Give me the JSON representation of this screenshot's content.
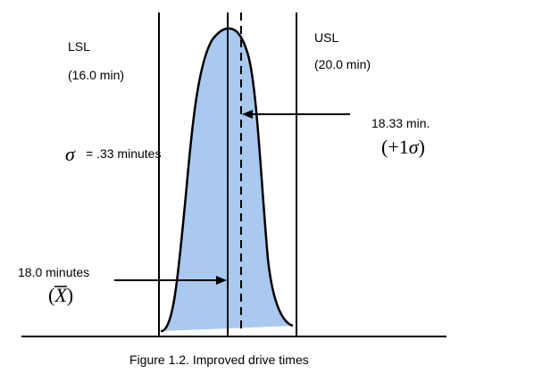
{
  "figure": {
    "lsl_label": "LSL",
    "lsl_value": "(16.0 min)",
    "usl_label": "USL",
    "usl_value": "(20.0 min)",
    "sigma_symbol": "σ",
    "sigma_text": "= .33 minutes",
    "plus_sigma_value": "18.33 min.",
    "plus_sigma_open": "(+1",
    "plus_sigma_symbol": "σ",
    "plus_sigma_close": ")",
    "mean_value": "18.0 minutes",
    "mean_open": "(",
    "mean_symbol": "X",
    "mean_close": ")",
    "caption": "Figure 1.2. Improved drive times",
    "colors": {
      "curve_fill": "#a9c9ef",
      "line": "#000000"
    }
  }
}
